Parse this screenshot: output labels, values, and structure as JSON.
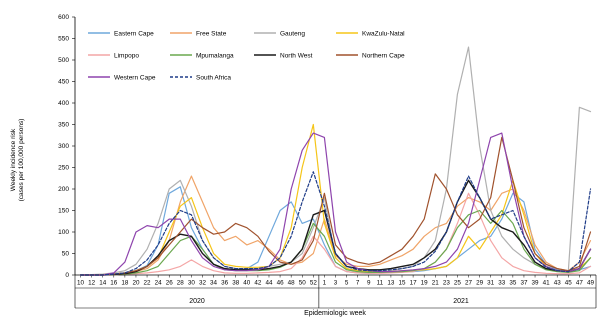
{
  "chart_data": {
    "type": "line",
    "ylabel_lines": [
      "Weekly incidence risk",
      "(cases per 100,000 persons)"
    ],
    "xlabel": "Epidemiologic week",
    "ylim": [
      0,
      600
    ],
    "yticks": [
      0,
      50,
      100,
      150,
      200,
      250,
      300,
      350,
      400,
      450,
      500,
      550,
      600
    ],
    "year_labels": [
      "2020",
      "2021"
    ],
    "x_2020": [
      10,
      12,
      14,
      16,
      18,
      20,
      22,
      24,
      26,
      28,
      30,
      32,
      34,
      36,
      38,
      40,
      42,
      44,
      46,
      48,
      50,
      52
    ],
    "x_2021": [
      1,
      3,
      5,
      7,
      9,
      11,
      13,
      15,
      17,
      19,
      21,
      23,
      25,
      27,
      29,
      31,
      33,
      35,
      37,
      39,
      41,
      43,
      45,
      47,
      49
    ],
    "grid": false,
    "legend_position": "top-left",
    "series": [
      {
        "name": "Eastern Cape",
        "color": "#6fa8dc",
        "dash": "",
        "values_2020": [
          0,
          0,
          1,
          2,
          5,
          10,
          22,
          70,
          190,
          205,
          110,
          60,
          25,
          15,
          12,
          15,
          30,
          90,
          150,
          170,
          120,
          130
        ],
        "values_2021": [
          70,
          20,
          8,
          5,
          4,
          5,
          6,
          7,
          8,
          10,
          15,
          20,
          40,
          60,
          80,
          90,
          130,
          190,
          170,
          60,
          25,
          12,
          8,
          12,
          20
        ]
      },
      {
        "name": "Free State",
        "color": "#f0a468",
        "dash": "",
        "values_2020": [
          0,
          0,
          0,
          1,
          2,
          8,
          15,
          35,
          80,
          170,
          230,
          170,
          110,
          80,
          90,
          70,
          80,
          60,
          35,
          25,
          30,
          50
        ],
        "values_2021": [
          130,
          45,
          25,
          20,
          20,
          25,
          35,
          45,
          60,
          90,
          110,
          120,
          160,
          180,
          170,
          150,
          190,
          200,
          150,
          70,
          30,
          15,
          10,
          30,
          80
        ]
      },
      {
        "name": "Gauteng",
        "color": "#b0b0b0",
        "dash": "",
        "values_2020": [
          0,
          1,
          2,
          5,
          10,
          25,
          60,
          120,
          200,
          220,
          160,
          80,
          40,
          20,
          15,
          15,
          15,
          20,
          25,
          30,
          50,
          110
        ],
        "values_2021": [
          180,
          40,
          15,
          10,
          8,
          8,
          10,
          15,
          20,
          40,
          80,
          200,
          420,
          530,
          300,
          150,
          90,
          60,
          40,
          25,
          15,
          10,
          8,
          390,
          380
        ]
      },
      {
        "name": "KwaZulu-Natal",
        "color": "#f5c518",
        "dash": "",
        "values_2020": [
          0,
          0,
          1,
          2,
          5,
          10,
          20,
          40,
          100,
          160,
          180,
          110,
          50,
          25,
          20,
          18,
          18,
          20,
          40,
          110,
          250,
          350
        ],
        "values_2021": [
          120,
          40,
          15,
          10,
          8,
          8,
          8,
          10,
          10,
          12,
          15,
          20,
          40,
          90,
          60,
          100,
          140,
          220,
          140,
          50,
          20,
          10,
          8,
          15,
          40
        ]
      },
      {
        "name": "Limpopo",
        "color": "#f4a6a6",
        "dash": "",
        "values_2020": [
          0,
          0,
          0,
          1,
          2,
          3,
          5,
          8,
          12,
          20,
          35,
          20,
          10,
          5,
          4,
          4,
          5,
          6,
          8,
          15,
          40,
          90
        ],
        "values_2021": [
          60,
          20,
          8,
          5,
          4,
          4,
          5,
          6,
          8,
          15,
          30,
          60,
          120,
          190,
          140,
          80,
          40,
          20,
          10,
          6,
          4,
          3,
          3,
          5,
          20
        ]
      },
      {
        "name": "Mpumalanga",
        "color": "#6aa84f",
        "dash": "",
        "values_2020": [
          0,
          0,
          0,
          1,
          2,
          5,
          10,
          20,
          50,
          80,
          90,
          60,
          25,
          12,
          10,
          10,
          10,
          12,
          18,
          30,
          60,
          120
        ],
        "values_2021": [
          90,
          30,
          12,
          8,
          6,
          6,
          7,
          8,
          10,
          15,
          30,
          60,
          110,
          140,
          150,
          120,
          150,
          120,
          60,
          25,
          12,
          8,
          6,
          10,
          40
        ]
      },
      {
        "name": "North West",
        "color": "#1a1a1a",
        "dash": "",
        "values_2020": [
          0,
          0,
          0,
          1,
          3,
          8,
          20,
          45,
          80,
          95,
          90,
          50,
          25,
          15,
          12,
          12,
          12,
          15,
          20,
          30,
          60,
          140
        ],
        "values_2021": [
          150,
          50,
          20,
          15,
          12,
          12,
          15,
          20,
          25,
          40,
          60,
          100,
          170,
          220,
          180,
          130,
          110,
          100,
          70,
          30,
          15,
          10,
          8,
          15,
          60
        ]
      },
      {
        "name": "Northern Cape",
        "color": "#a0522d",
        "dash": "",
        "values_2020": [
          0,
          0,
          0,
          2,
          5,
          10,
          20,
          40,
          70,
          100,
          130,
          110,
          95,
          100,
          120,
          110,
          90,
          55,
          30,
          25,
          35,
          80
        ],
        "values_2021": [
          190,
          70,
          40,
          30,
          25,
          30,
          45,
          60,
          90,
          130,
          235,
          200,
          140,
          110,
          130,
          180,
          320,
          220,
          110,
          50,
          25,
          15,
          10,
          20,
          100
        ]
      },
      {
        "name": "Western Cape",
        "color": "#8e44ad",
        "dash": "",
        "values_2020": [
          0,
          0,
          0,
          5,
          30,
          100,
          115,
          110,
          130,
          130,
          80,
          40,
          20,
          12,
          10,
          10,
          12,
          20,
          60,
          200,
          290,
          330
        ],
        "values_2021": [
          320,
          100,
          30,
          15,
          10,
          8,
          8,
          10,
          12,
          15,
          20,
          30,
          60,
          120,
          220,
          320,
          330,
          200,
          90,
          40,
          20,
          10,
          8,
          15,
          60
        ]
      },
      {
        "name": "South Africa",
        "color": "#1f3c88",
        "dash": "3,2",
        "values_2020": [
          0,
          0,
          0,
          2,
          5,
          15,
          35,
          70,
          120,
          150,
          140,
          80,
          40,
          20,
          15,
          15,
          15,
          20,
          40,
          90,
          170,
          240
        ],
        "values_2021": [
          160,
          50,
          20,
          12,
          10,
          10,
          12,
          15,
          20,
          30,
          55,
          100,
          170,
          230,
          180,
          130,
          140,
          150,
          90,
          40,
          18,
          10,
          8,
          30,
          200
        ]
      }
    ]
  }
}
